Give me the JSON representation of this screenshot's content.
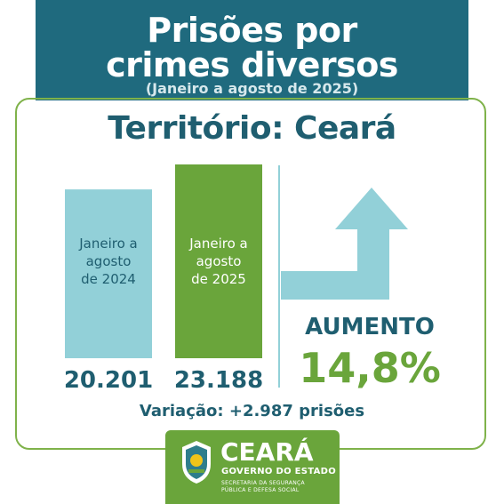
{
  "header": {
    "title_line1": "Prisões por",
    "title_line2": "crimes diversos",
    "subtitle": "(Janeiro a agosto de 2025)"
  },
  "territory": "Território: Ceará",
  "chart_data": {
    "type": "bar",
    "categories": [
      "Janeiro a agosto de 2024",
      "Janeiro a agosto de 2025"
    ],
    "category_lines": [
      [
        "Janeiro a",
        "agosto",
        "de 2024"
      ],
      [
        "Janeiro a",
        "agosto",
        "de 2025"
      ]
    ],
    "values": [
      20201,
      23188
    ],
    "value_labels": [
      "20.201",
      "23.188"
    ],
    "title": "",
    "xlabel": "",
    "ylabel": "",
    "ylim": [
      0,
      23188
    ],
    "grid": false,
    "legend": "none",
    "colors": [
      "#92d0d8",
      "#6aa53b"
    ]
  },
  "summary": {
    "trend_label": "AUMENTO",
    "percent": "14,8%",
    "variation": "Variação: +2.987 prisões"
  },
  "logo": {
    "name": "CEARÁ",
    "government": "GOVERNO DO ESTADO",
    "secretariat_line1": "SECRETARIA DA SEGURANÇA",
    "secretariat_line2": "PÚBLICA E DEFESA SOCIAL"
  },
  "colors": {
    "teal_dark": "#1f6a7e",
    "teal_text": "#1f5e70",
    "light_teal": "#92d0d8",
    "green": "#6aa53b"
  }
}
